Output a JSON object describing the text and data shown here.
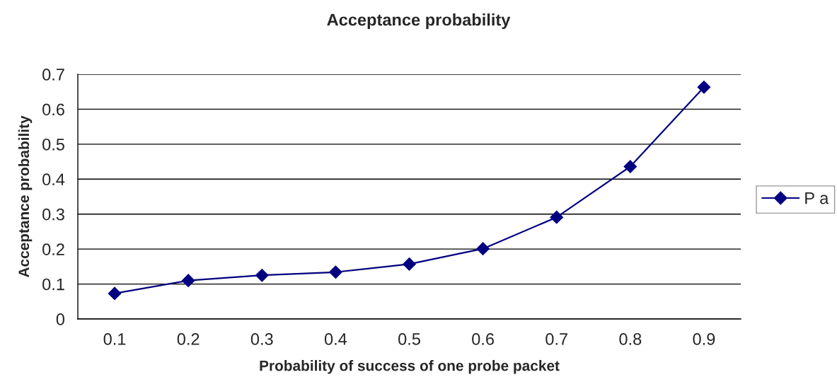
{
  "chart_data": {
    "type": "line",
    "title": "Acceptance probability",
    "xlabel": "Probability of success of one probe packet",
    "ylabel": "Acceptance probability",
    "categories": [
      "0.1",
      "0.2",
      "0.3",
      "0.4",
      "0.5",
      "0.6",
      "0.7",
      "0.8",
      "0.9"
    ],
    "series": [
      {
        "name": "P a",
        "color": "#000080",
        "values": [
          0.073,
          0.11,
          0.125,
          0.134,
          0.157,
          0.201,
          0.291,
          0.436,
          0.663
        ]
      }
    ],
    "ylim": [
      0,
      0.7
    ],
    "yticks": [
      0,
      0.1,
      0.2,
      0.3,
      0.4,
      0.5,
      0.6,
      0.7
    ],
    "grid": "y",
    "legend": "right",
    "marker": "diamond",
    "line_style": "solid"
  }
}
